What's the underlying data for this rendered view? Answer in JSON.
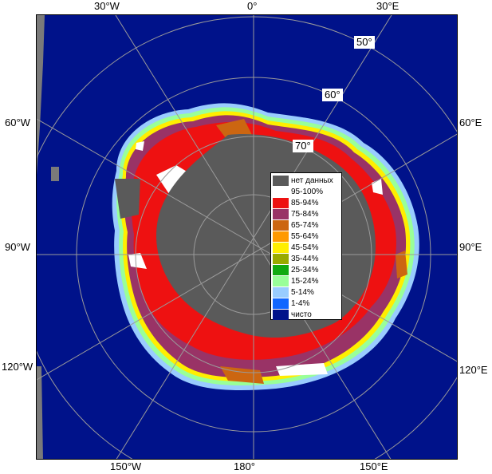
{
  "colors": {
    "ocean": "#00128a",
    "no_data": "#5a5a5a",
    "land_grey": "#7a7a7a",
    "graticule": "#9a9a9a"
  },
  "lon_labels": {
    "top_30w": "30°W",
    "top_0": "0°",
    "top_30e": "30°E",
    "left_60w": "60°W",
    "left_90w": "90°W",
    "left_120w": "120°W",
    "right_60e": "60°E",
    "right_90e": "90°E",
    "right_120e": "120°E",
    "bottom_150w": "150°W",
    "bottom_180": "180°",
    "bottom_150e": "150°E"
  },
  "lat_labels": {
    "lat_50": "50°",
    "lat_60": "60°",
    "lat_70": "70°"
  },
  "legend": [
    {
      "label": "нет данных",
      "color": "#5a5a5a"
    },
    {
      "label": "95-100%",
      "color": "#ffffff"
    },
    {
      "label": "85-94%",
      "color": "#ee1111"
    },
    {
      "label": "75-84%",
      "color": "#993366"
    },
    {
      "label": "65-74%",
      "color": "#cc6611"
    },
    {
      "label": "55-64%",
      "color": "#ff9900"
    },
    {
      "label": "45-54%",
      "color": "#ffee00"
    },
    {
      "label": "35-44%",
      "color": "#99aa00"
    },
    {
      "label": "25-34%",
      "color": "#11aa11"
    },
    {
      "label": "15-24%",
      "color": "#99ff99"
    },
    {
      "label": "5-14%",
      "color": "#99ccff"
    },
    {
      "label": "1-4%",
      "color": "#1166ff"
    },
    {
      "label": "чисто",
      "color": "#00128a"
    }
  ]
}
